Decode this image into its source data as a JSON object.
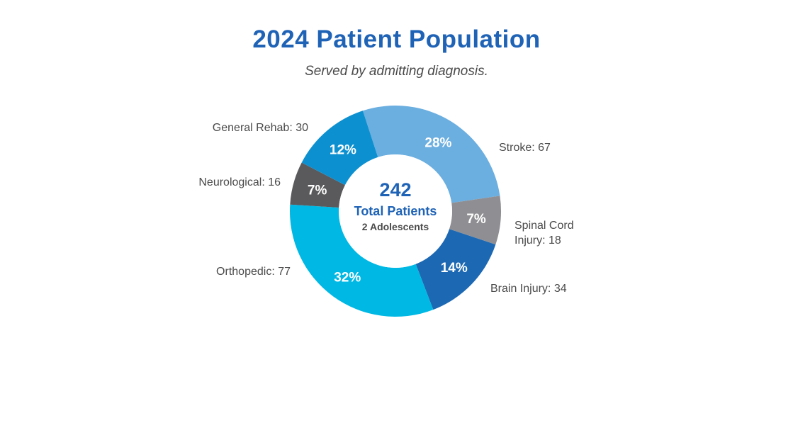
{
  "colors": {
    "title": "#1f63b6",
    "accent": "#1f63b6"
  },
  "chart_data": {
    "type": "pie",
    "title": "2024 Patient Population",
    "subtitle": "Served by admitting diagnosis.",
    "center": {
      "total": "242",
      "label": "Total Patients",
      "note": "2 Adolescents"
    },
    "slices": [
      {
        "name": "Stroke",
        "label": "Stroke: 67",
        "value": 67,
        "percent_label": "28%",
        "color": "#6baee0"
      },
      {
        "name": "Spinal Cord Injury",
        "label_lines": [
          "Spinal Cord",
          "Injury: 18"
        ],
        "value": 18,
        "percent_label": "7%",
        "color": "#8f8f93"
      },
      {
        "name": "Brain Injury",
        "label": "Brain Injury: 34",
        "value": 34,
        "percent_label": "14%",
        "color": "#1c68b3"
      },
      {
        "name": "Orthopedic",
        "label": "Orthopedic: 77",
        "value": 77,
        "percent_label": "32%",
        "color": "#00b8e4"
      },
      {
        "name": "Neurological",
        "label": "Neurological: 16",
        "value": 16,
        "percent_label": "7%",
        "color": "#5a5a5c"
      },
      {
        "name": "General Rehab",
        "label": "General Rehab: 30",
        "value": 30,
        "percent_label": "12%",
        "color": "#0d90d0"
      }
    ]
  }
}
